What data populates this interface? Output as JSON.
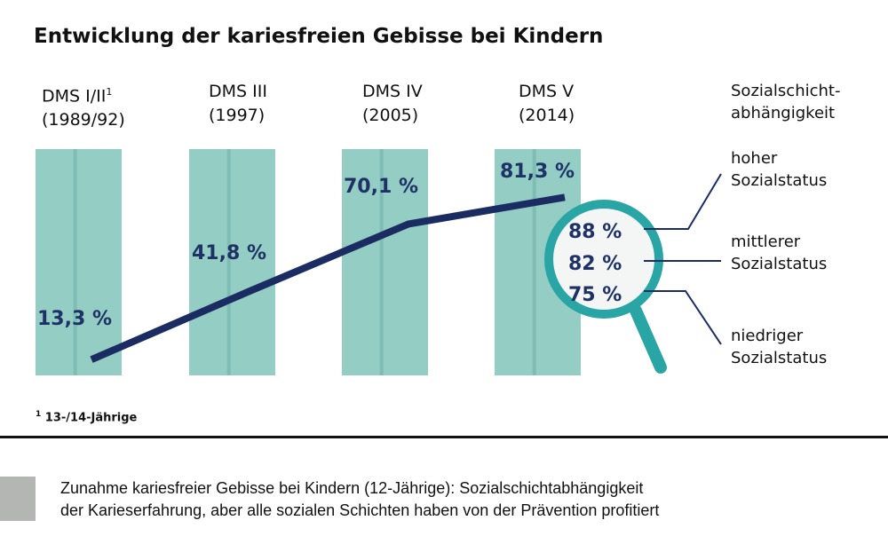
{
  "colors": {
    "bar": "#93cdc4",
    "bar_stripe": "#7dbdb3",
    "line": "#1b2c63",
    "magnifier": "#2aa5a5",
    "text": "#1f3266"
  },
  "chart_data": {
    "type": "line",
    "title": "Entwicklung der kariesfreien Gebisse bei Kindern",
    "categories": [
      {
        "name": "DMS I/II",
        "superscript": "1",
        "period": "(1989/92)"
      },
      {
        "name": "DMS III",
        "period": "(1997)"
      },
      {
        "name": "DMS IV",
        "period": "(2005)"
      },
      {
        "name": "DMS V",
        "period": "(2014)"
      }
    ],
    "values": [
      13.3,
      41.8,
      70.1,
      81.3
    ],
    "value_labels": [
      "13,3 %",
      "41,8 %",
      "70,1 %",
      "81,3 %"
    ],
    "unit": "%",
    "social_breakdown": {
      "header": [
        "Sozialschicht-",
        "abhängigkeit"
      ],
      "items": [
        {
          "value": 88,
          "label": "88 %",
          "group": [
            "hoher",
            "Sozialstatus"
          ]
        },
        {
          "value": 82,
          "label": "82 %",
          "group": [
            "mittlerer",
            "Sozialstatus"
          ]
        },
        {
          "value": 75,
          "label": "75 %",
          "group": [
            "niedriger",
            "Sozialstatus"
          ]
        }
      ],
      "icon": "magnifier-icon"
    },
    "footnote": {
      "mark": "1",
      "text": "13-/14-Jährige"
    }
  },
  "caption": [
    "Zunahme kariesfreier Gebisse bei Kindern (12-Jährige): Sozialschichtabhängigkeit",
    "der Karieserfahrung, aber alle sozialen Schichten haben von der Prävention profitiert"
  ]
}
